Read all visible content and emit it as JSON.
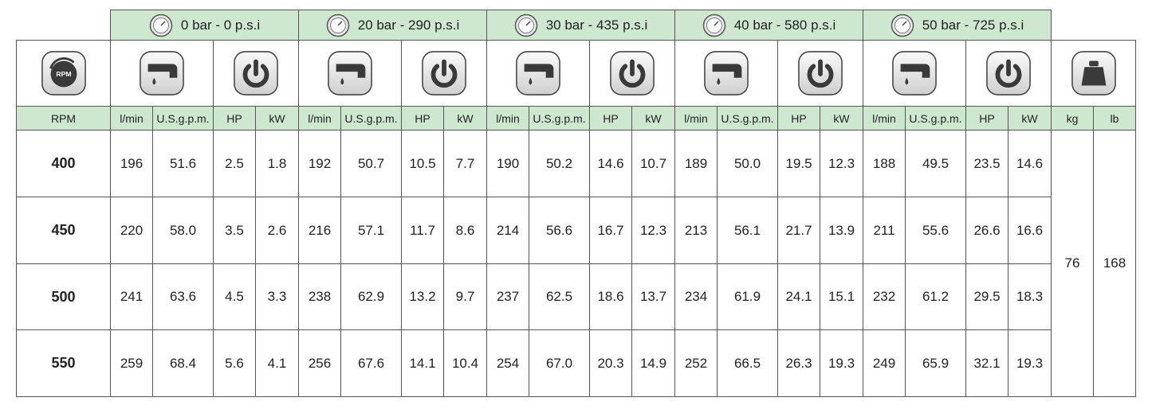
{
  "header": {
    "rpm_icon_label": "RPM",
    "pressure_headers": [
      "0 bar - 0 p.s.i",
      "20 bar - 290 p.s.i",
      "30 bar - 435 p.s.i",
      "40 bar - 580 p.s.i",
      "50 bar - 725 p.s.i"
    ]
  },
  "table": {
    "unit_row": [
      "RPM",
      "l/min",
      "U.S.g.p.m.",
      "HP",
      "kW",
      "l/min",
      "U.S.g.p.m.",
      "HP",
      "kW",
      "l/min",
      "U.S.g.p.m.",
      "HP",
      "kW",
      "l/min",
      "U.S.g.p.m.",
      "HP",
      "kW",
      "l/min",
      "U.S.g.p.m.",
      "HP",
      "kW",
      "kg",
      "lb"
    ],
    "rows": [
      [
        "400",
        "196",
        "51.6",
        "2.5",
        "1.8",
        "192",
        "50.7",
        "10.5",
        "7.7",
        "190",
        "50.2",
        "14.6",
        "10.7",
        "189",
        "50.0",
        "19.5",
        "12.3",
        "188",
        "49.5",
        "23.5",
        "14.6"
      ],
      [
        "450",
        "220",
        "58.0",
        "3.5",
        "2.6",
        "216",
        "57.1",
        "11.7",
        "8.6",
        "214",
        "56.6",
        "16.7",
        "12.3",
        "213",
        "56.1",
        "21.7",
        "13.9",
        "211",
        "55.6",
        "26.6",
        "16.6"
      ],
      [
        "500",
        "241",
        "63.6",
        "4.5",
        "3.3",
        "238",
        "62.9",
        "13.2",
        "9.7",
        "237",
        "62.5",
        "18.6",
        "13.7",
        "234",
        "61.9",
        "24.1",
        "15.1",
        "232",
        "61.2",
        "29.5",
        "18.3"
      ],
      [
        "550",
        "259",
        "68.4",
        "5.6",
        "4.1",
        "256",
        "67.6",
        "14.1",
        "10.4",
        "254",
        "67.0",
        "20.3",
        "14.9",
        "252",
        "66.5",
        "26.3",
        "19.3",
        "249",
        "65.9",
        "32.1",
        "19.3"
      ]
    ],
    "weight": [
      "76",
      "168"
    ]
  }
}
